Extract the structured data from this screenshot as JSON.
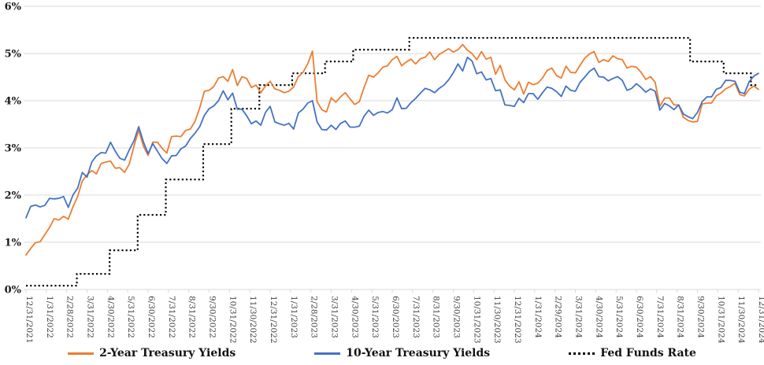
{
  "chart_data": {
    "type": "line",
    "title": "",
    "y_axis": {
      "ticks": [
        "0%",
        "1%",
        "2%",
        "3%",
        "4%",
        "5%",
        "6%"
      ],
      "min": 0,
      "max": 6,
      "unit": "%",
      "label_color": "#1a1a1a"
    },
    "x_axis": {
      "label_color": "#404040",
      "label_rotation_deg": 90
    },
    "grid_color": "#D9D9D9",
    "background": "#ffffff",
    "legend_position": "bottom",
    "x_labels": [
      "12/31/2021",
      "1/31/2022",
      "2/28/2022",
      "3/31/2022",
      "4/30/2022",
      "5/31/2022",
      "6/30/2022",
      "7/31/2022",
      "8/31/2022",
      "9/30/2022",
      "10/31/2022",
      "11/30/2022",
      "12/31/2022",
      "1/31/2023",
      "2/28/2023",
      "3/31/2023",
      "4/30/2023",
      "5/31/2023",
      "6/30/2023",
      "7/31/2023",
      "8/31/2023",
      "9/30/2023",
      "10/31/2023",
      "11/30/2023",
      "12/31/2023",
      "1/31/2024",
      "2/29/2024",
      "3/31/2024",
      "4/30/2024",
      "5/31/2024",
      "6/30/2024",
      "7/31/2024",
      "8/31/2024",
      "9/30/2024",
      "10/31/2024",
      "11/30/2024",
      "12/31/2024"
    ],
    "x_range_months": 36,
    "series": [
      {
        "name": "2-Year Treasury Yields",
        "color": "#ED7D31",
        "style": "solid",
        "sampling": "weekly",
        "values": [
          0.73,
          0.87,
          0.99,
          1.01,
          1.16,
          1.31,
          1.5,
          1.47,
          1.55,
          1.49,
          1.75,
          1.97,
          2.3,
          2.43,
          2.52,
          2.45,
          2.67,
          2.7,
          2.72,
          2.57,
          2.58,
          2.48,
          2.66,
          3.04,
          3.38,
          3.04,
          2.84,
          3.12,
          3.12,
          2.99,
          2.89,
          3.24,
          3.25,
          3.24,
          3.37,
          3.4,
          3.56,
          3.85,
          4.2,
          4.22,
          4.3,
          4.48,
          4.51,
          4.41,
          4.66,
          4.32,
          4.51,
          4.47,
          4.28,
          4.33,
          4.17,
          4.31,
          4.41,
          4.25,
          4.22,
          4.17,
          4.2,
          4.29,
          4.51,
          4.6,
          4.78,
          5.05,
          3.98,
          3.81,
          3.76,
          4.06,
          3.97,
          4.08,
          4.17,
          4.04,
          3.92,
          3.98,
          4.28,
          4.54,
          4.5,
          4.59,
          4.71,
          4.74,
          4.87,
          4.94,
          4.74,
          4.82,
          4.88,
          4.78,
          4.89,
          4.92,
          5.03,
          4.87,
          4.98,
          5.04,
          5.1,
          5.03,
          5.08,
          5.19,
          5.07,
          5.0,
          4.87,
          5.04,
          4.88,
          4.92,
          4.56,
          4.75,
          4.44,
          4.31,
          4.23,
          4.4,
          4.14,
          4.39,
          4.34,
          4.37,
          4.48,
          4.64,
          4.69,
          4.53,
          4.48,
          4.73,
          4.6,
          4.59,
          4.75,
          4.9,
          4.99,
          5.04,
          4.81,
          4.87,
          4.83,
          4.95,
          4.89,
          4.87,
          4.69,
          4.73,
          4.71,
          4.6,
          4.45,
          4.51,
          4.39,
          3.88,
          4.05,
          4.06,
          3.91,
          3.91,
          3.65,
          3.58,
          3.55,
          3.56,
          3.93,
          3.95,
          3.95,
          4.1,
          4.16,
          4.25,
          4.3,
          4.37,
          4.13,
          4.1,
          4.24,
          4.31,
          4.24
        ]
      },
      {
        "name": "10-Year Treasury Yields",
        "color": "#4472C4",
        "style": "solid",
        "sampling": "weekly",
        "values": [
          1.52,
          1.76,
          1.79,
          1.75,
          1.78,
          1.93,
          1.92,
          1.93,
          1.97,
          1.74,
          2.0,
          2.15,
          2.48,
          2.38,
          2.7,
          2.83,
          2.9,
          2.89,
          3.12,
          2.93,
          2.78,
          2.74,
          2.96,
          3.15,
          3.45,
          3.13,
          2.88,
          3.09,
          2.93,
          2.77,
          2.67,
          2.83,
          2.84,
          2.98,
          3.04,
          3.2,
          3.31,
          3.45,
          3.69,
          3.83,
          3.89,
          4.0,
          4.21,
          4.02,
          4.16,
          3.82,
          3.82,
          3.68,
          3.51,
          3.57,
          3.48,
          3.75,
          3.88,
          3.55,
          3.51,
          3.48,
          3.52,
          3.4,
          3.74,
          3.82,
          3.95,
          4.0,
          3.55,
          3.39,
          3.38,
          3.48,
          3.39,
          3.52,
          3.57,
          3.44,
          3.44,
          3.46,
          3.67,
          3.8,
          3.69,
          3.75,
          3.77,
          3.74,
          3.81,
          4.06,
          3.83,
          3.84,
          3.96,
          4.05,
          4.16,
          4.26,
          4.23,
          4.17,
          4.26,
          4.33,
          4.44,
          4.59,
          4.78,
          4.63,
          4.92,
          4.84,
          4.57,
          4.61,
          4.44,
          4.47,
          4.21,
          4.23,
          3.91,
          3.9,
          3.88,
          4.05,
          3.96,
          4.15,
          4.15,
          4.03,
          4.17,
          4.29,
          4.26,
          4.19,
          4.09,
          4.31,
          4.22,
          4.2,
          4.39,
          4.5,
          4.62,
          4.69,
          4.51,
          4.5,
          4.42,
          4.47,
          4.51,
          4.43,
          4.22,
          4.26,
          4.36,
          4.28,
          4.18,
          4.25,
          4.2,
          3.8,
          3.94,
          3.89,
          3.81,
          3.91,
          3.72,
          3.66,
          3.62,
          3.75,
          3.98,
          4.08,
          4.08,
          4.24,
          4.28,
          4.43,
          4.43,
          4.41,
          4.18,
          4.15,
          4.4,
          4.52,
          4.58
        ]
      },
      {
        "name": "Fed Funds Rate",
        "color": "#000000",
        "style": "dotted",
        "steps": [
          [
            0,
            0.08
          ],
          [
            2.5,
            0.33
          ],
          [
            4.11,
            0.83
          ],
          [
            5.49,
            1.58
          ],
          [
            6.87,
            2.33
          ],
          [
            8.71,
            3.08
          ],
          [
            10.09,
            3.83
          ],
          [
            11.47,
            4.33
          ],
          [
            13.08,
            4.58
          ],
          [
            14.7,
            4.83
          ],
          [
            16.08,
            5.08
          ],
          [
            18.84,
            5.33
          ],
          [
            32.64,
            4.83
          ],
          [
            34.29,
            4.58
          ],
          [
            35.63,
            4.33
          ]
        ]
      }
    ]
  },
  "legend": {
    "entries": [
      "2-Year Treasury Yields",
      "10-Year Treasury Yields",
      "Fed Funds Rate"
    ]
  }
}
